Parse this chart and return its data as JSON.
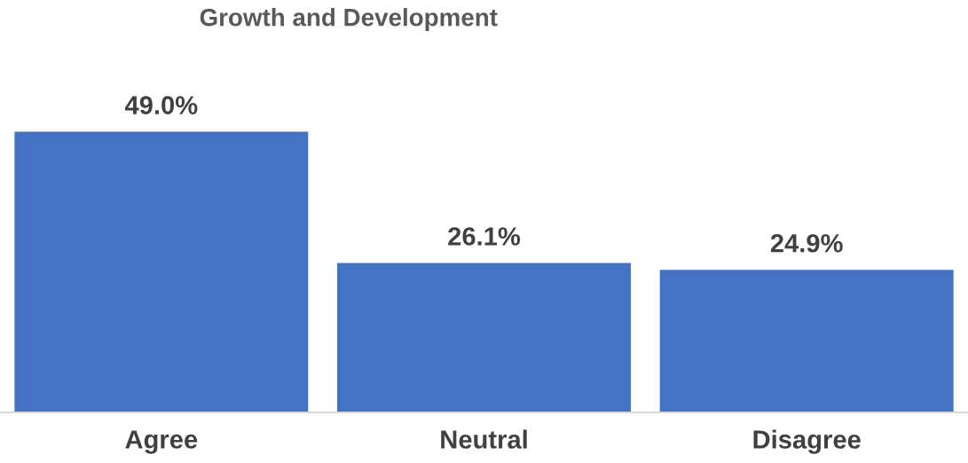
{
  "chart_data": {
    "type": "bar",
    "title": "Growth and Development",
    "categories": [
      "Agree",
      "Neutral",
      "Disagree"
    ],
    "values": [
      49.0,
      26.1,
      24.9
    ],
    "value_labels": [
      "49.0%",
      "26.1%",
      "24.9%"
    ],
    "color": "#4472c4",
    "grid": false,
    "legend": false
  }
}
